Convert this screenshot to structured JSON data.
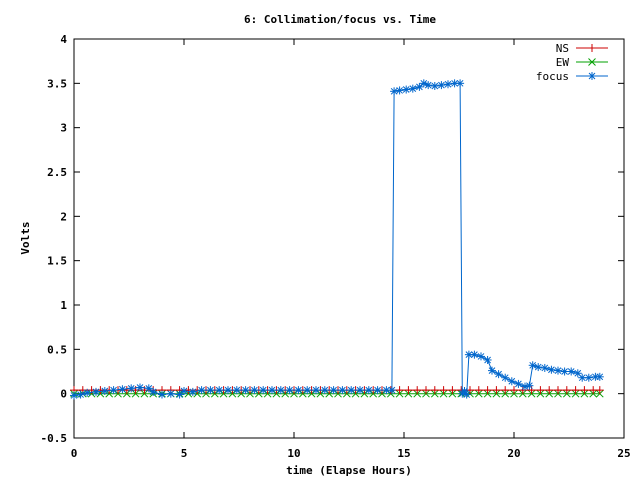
{
  "chart_data": {
    "type": "line",
    "title": "6: Collimation/focus vs. Time",
    "xlabel": "time (Elapse Hours)",
    "ylabel": "Volts",
    "xlim": [
      0,
      25
    ],
    "ylim": [
      -0.5,
      4
    ],
    "x_ticks": [
      "0",
      "5",
      "10",
      "15",
      "20",
      "25"
    ],
    "y_ticks": [
      "-0.5",
      "0",
      "0.5",
      "1",
      "1.5",
      "2",
      "2.5",
      "3",
      "3.5",
      "4"
    ],
    "grid": false,
    "legend_position": "top-right",
    "series": [
      {
        "name": "NS",
        "color": "#cc0000",
        "marker": "plus",
        "points": [
          [
            0,
            0.04
          ],
          [
            0.4,
            0.04
          ],
          [
            0.8,
            0.04
          ],
          [
            1.2,
            0.04
          ],
          [
            1.6,
            0.04
          ],
          [
            2.0,
            0.04
          ],
          [
            2.4,
            0.04
          ],
          [
            2.8,
            0.04
          ],
          [
            3.2,
            0.04
          ],
          [
            3.6,
            0.04
          ],
          [
            4.0,
            0.04
          ],
          [
            4.4,
            0.04
          ],
          [
            4.8,
            0.04
          ],
          [
            5.2,
            0.04
          ],
          [
            5.6,
            0.04
          ],
          [
            6.0,
            0.04
          ],
          [
            6.4,
            0.04
          ],
          [
            6.8,
            0.04
          ],
          [
            7.2,
            0.04
          ],
          [
            7.6,
            0.04
          ],
          [
            8.0,
            0.04
          ],
          [
            8.4,
            0.04
          ],
          [
            8.8,
            0.04
          ],
          [
            9.2,
            0.04
          ],
          [
            9.6,
            0.04
          ],
          [
            10.0,
            0.04
          ],
          [
            10.4,
            0.04
          ],
          [
            10.8,
            0.04
          ],
          [
            11.2,
            0.04
          ],
          [
            11.6,
            0.04
          ],
          [
            12.0,
            0.04
          ],
          [
            12.4,
            0.04
          ],
          [
            12.8,
            0.04
          ],
          [
            13.2,
            0.04
          ],
          [
            13.6,
            0.04
          ],
          [
            14.0,
            0.04
          ],
          [
            14.4,
            0.04
          ],
          [
            14.8,
            0.04
          ],
          [
            15.2,
            0.04
          ],
          [
            15.6,
            0.04
          ],
          [
            16.0,
            0.04
          ],
          [
            16.4,
            0.04
          ],
          [
            16.8,
            0.04
          ],
          [
            17.2,
            0.04
          ],
          [
            17.6,
            0.04
          ],
          [
            18.0,
            0.04
          ],
          [
            18.4,
            0.04
          ],
          [
            18.8,
            0.04
          ],
          [
            19.2,
            0.04
          ],
          [
            19.6,
            0.04
          ],
          [
            20.0,
            0.04
          ],
          [
            20.4,
            0.04
          ],
          [
            20.8,
            0.04
          ],
          [
            21.2,
            0.04
          ],
          [
            21.6,
            0.04
          ],
          [
            22.0,
            0.04
          ],
          [
            22.4,
            0.04
          ],
          [
            22.8,
            0.04
          ],
          [
            23.2,
            0.04
          ],
          [
            23.6,
            0.04
          ],
          [
            23.9,
            0.04
          ]
        ]
      },
      {
        "name": "EW",
        "color": "#00a000",
        "marker": "cross",
        "points": [
          [
            0,
            0.0
          ],
          [
            0.4,
            0.0
          ],
          [
            0.8,
            0.0
          ],
          [
            1.2,
            0.0
          ],
          [
            1.6,
            0.0
          ],
          [
            2.0,
            0.0
          ],
          [
            2.4,
            0.0
          ],
          [
            2.8,
            0.0
          ],
          [
            3.2,
            0.0
          ],
          [
            3.6,
            0.0
          ],
          [
            4.0,
            0.0
          ],
          [
            4.4,
            0.0
          ],
          [
            4.8,
            0.0
          ],
          [
            5.2,
            0.0
          ],
          [
            5.6,
            0.0
          ],
          [
            6.0,
            0.0
          ],
          [
            6.4,
            0.0
          ],
          [
            6.8,
            0.0
          ],
          [
            7.2,
            0.0
          ],
          [
            7.6,
            0.0
          ],
          [
            8.0,
            0.0
          ],
          [
            8.4,
            0.0
          ],
          [
            8.8,
            0.0
          ],
          [
            9.2,
            0.0
          ],
          [
            9.6,
            0.0
          ],
          [
            10.0,
            0.0
          ],
          [
            10.4,
            0.0
          ],
          [
            10.8,
            0.0
          ],
          [
            11.2,
            0.0
          ],
          [
            11.6,
            0.0
          ],
          [
            12.0,
            0.0
          ],
          [
            12.4,
            0.0
          ],
          [
            12.8,
            0.0
          ],
          [
            13.2,
            0.0
          ],
          [
            13.6,
            0.0
          ],
          [
            14.0,
            0.0
          ],
          [
            14.4,
            0.0
          ],
          [
            14.8,
            0.0
          ],
          [
            15.2,
            0.0
          ],
          [
            15.6,
            0.0
          ],
          [
            16.0,
            0.0
          ],
          [
            16.4,
            0.0
          ],
          [
            16.8,
            0.0
          ],
          [
            17.2,
            0.0
          ],
          [
            17.6,
            0.0
          ],
          [
            18.0,
            0.0
          ],
          [
            18.4,
            0.0
          ],
          [
            18.8,
            0.0
          ],
          [
            19.2,
            0.0
          ],
          [
            19.6,
            0.0
          ],
          [
            20.0,
            0.0
          ],
          [
            20.4,
            0.0
          ],
          [
            20.8,
            0.0
          ],
          [
            21.2,
            0.0
          ],
          [
            21.6,
            0.0
          ],
          [
            22.0,
            0.0
          ],
          [
            22.4,
            0.0
          ],
          [
            22.8,
            0.0
          ],
          [
            23.2,
            0.0
          ],
          [
            23.6,
            0.0
          ],
          [
            23.9,
            0.0
          ]
        ]
      },
      {
        "name": "focus",
        "color": "#0066cc",
        "marker": "star",
        "points": [
          [
            0.0,
            -0.02
          ],
          [
            0.3,
            -0.01
          ],
          [
            0.6,
            0.01
          ],
          [
            1.0,
            0.02
          ],
          [
            1.4,
            0.03
          ],
          [
            1.8,
            0.04
          ],
          [
            2.2,
            0.05
          ],
          [
            2.6,
            0.06
          ],
          [
            3.0,
            0.07
          ],
          [
            3.4,
            0.06
          ],
          [
            3.6,
            0.02
          ],
          [
            4.0,
            -0.01
          ],
          [
            4.4,
            0.0
          ],
          [
            4.8,
            -0.01
          ],
          [
            5.0,
            0.03
          ],
          [
            5.4,
            0.02
          ],
          [
            5.8,
            0.04
          ],
          [
            6.2,
            0.04
          ],
          [
            6.6,
            0.04
          ],
          [
            7.0,
            0.04
          ],
          [
            7.4,
            0.04
          ],
          [
            7.8,
            0.04
          ],
          [
            8.2,
            0.04
          ],
          [
            8.6,
            0.04
          ],
          [
            9.0,
            0.04
          ],
          [
            9.4,
            0.04
          ],
          [
            9.8,
            0.04
          ],
          [
            10.2,
            0.04
          ],
          [
            10.6,
            0.04
          ],
          [
            11.0,
            0.04
          ],
          [
            11.4,
            0.04
          ],
          [
            11.8,
            0.04
          ],
          [
            12.2,
            0.04
          ],
          [
            12.6,
            0.04
          ],
          [
            13.0,
            0.04
          ],
          [
            13.4,
            0.04
          ],
          [
            13.8,
            0.04
          ],
          [
            14.2,
            0.04
          ],
          [
            14.45,
            0.04
          ],
          [
            14.55,
            3.41
          ],
          [
            14.8,
            3.42
          ],
          [
            15.1,
            3.43
          ],
          [
            15.4,
            3.44
          ],
          [
            15.7,
            3.46
          ],
          [
            15.9,
            3.5
          ],
          [
            16.1,
            3.48
          ],
          [
            16.4,
            3.47
          ],
          [
            16.7,
            3.48
          ],
          [
            17.0,
            3.49
          ],
          [
            17.3,
            3.5
          ],
          [
            17.55,
            3.5
          ],
          [
            17.65,
            0.0
          ],
          [
            17.75,
            0.03
          ],
          [
            17.85,
            -0.01
          ],
          [
            17.95,
            0.44
          ],
          [
            18.2,
            0.44
          ],
          [
            18.5,
            0.42
          ],
          [
            18.8,
            0.38
          ],
          [
            19.0,
            0.26
          ],
          [
            19.3,
            0.22
          ],
          [
            19.6,
            0.18
          ],
          [
            19.9,
            0.14
          ],
          [
            20.2,
            0.11
          ],
          [
            20.5,
            0.08
          ],
          [
            20.7,
            0.09
          ],
          [
            20.85,
            0.32
          ],
          [
            21.1,
            0.3
          ],
          [
            21.4,
            0.29
          ],
          [
            21.7,
            0.27
          ],
          [
            22.0,
            0.26
          ],
          [
            22.3,
            0.25
          ],
          [
            22.6,
            0.25
          ],
          [
            22.9,
            0.23
          ],
          [
            23.1,
            0.18
          ],
          [
            23.4,
            0.18
          ],
          [
            23.7,
            0.19
          ],
          [
            23.9,
            0.19
          ]
        ]
      }
    ]
  }
}
